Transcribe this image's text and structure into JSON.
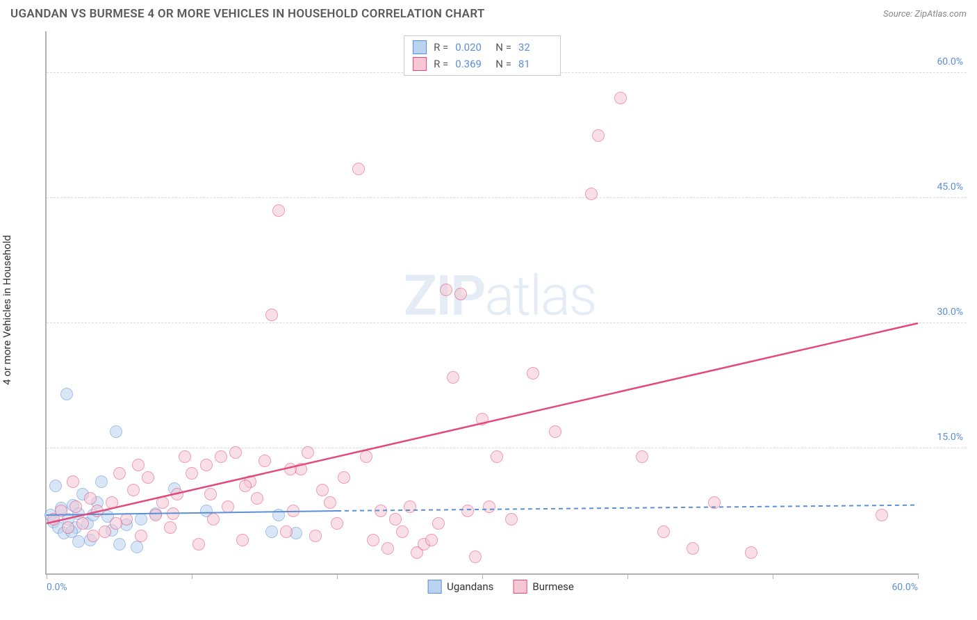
{
  "title": "UGANDAN VS BURMESE 4 OR MORE VEHICLES IN HOUSEHOLD CORRELATION CHART",
  "source": "Source: ZipAtlas.com",
  "y_axis_label": "4 or more Vehicles in Household",
  "watermark": {
    "bold": "ZIP",
    "light": "atlas"
  },
  "chart": {
    "type": "scatter",
    "xlim": [
      0,
      60
    ],
    "ylim": [
      0,
      65
    ],
    "x_ticks": [
      0,
      10,
      20,
      30,
      40,
      50,
      60
    ],
    "x_tick_labels": {
      "0": "0.0%",
      "60": "60.0%"
    },
    "y_gridlines": [
      15,
      30,
      45,
      60
    ],
    "y_tick_labels": {
      "15": "15.0%",
      "30": "30.0%",
      "45": "45.0%",
      "60": "60.0%"
    },
    "background_color": "#ffffff",
    "grid_color": "#d8d8d8",
    "axis_color": "#b0b0b0",
    "point_radius": 9,
    "point_opacity": 0.55
  },
  "series": [
    {
      "name": "Ugandans",
      "color_fill": "#b9d3f0",
      "color_stroke": "#5b8fd6",
      "R": "0.020",
      "N": "32",
      "trend": {
        "x1": 0,
        "y1": 7.0,
        "x2_solid": 20,
        "y2_solid": 7.5,
        "x2": 60,
        "y2": 8.2,
        "stroke_width": 2
      },
      "points": [
        [
          0.3,
          7
        ],
        [
          0.5,
          6.2
        ],
        [
          0.8,
          5.5
        ],
        [
          1.0,
          7.8
        ],
        [
          1.2,
          4.8
        ],
        [
          1.4,
          21.5
        ],
        [
          1.5,
          6.5
        ],
        [
          1.8,
          8.2
        ],
        [
          2.0,
          5.5
        ],
        [
          2.2,
          7.2
        ],
        [
          2.5,
          9.5
        ],
        [
          2.8,
          6.0
        ],
        [
          3.0,
          4.0
        ],
        [
          3.2,
          7.0
        ],
        [
          3.8,
          11.0
        ],
        [
          4.2,
          6.8
        ],
        [
          4.8,
          17.0
        ],
        [
          5.0,
          3.5
        ],
        [
          5.5,
          5.8
        ],
        [
          6.2,
          3.2
        ],
        [
          6.5,
          6.5
        ],
        [
          2.2,
          3.8
        ],
        [
          0.6,
          10.5
        ],
        [
          1.7,
          5.0
        ],
        [
          3.5,
          8.5
        ],
        [
          4.5,
          5.2
        ],
        [
          7.5,
          7.2
        ],
        [
          8.8,
          10.2
        ],
        [
          11.0,
          7.5
        ],
        [
          15.5,
          5.0
        ],
        [
          16.0,
          7.0
        ],
        [
          17.2,
          4.8
        ]
      ]
    },
    {
      "name": "Burmese",
      "color_fill": "#f5c8d4",
      "color_stroke": "#e24a7b",
      "R": "0.369",
      "N": "81",
      "trend": {
        "x1": 0,
        "y1": 6.0,
        "x2_solid": 60,
        "y2_solid": 30.0,
        "x2": 60,
        "y2": 30.0,
        "stroke_width": 2.5
      },
      "points": [
        [
          0.5,
          6.5
        ],
        [
          1.0,
          7.5
        ],
        [
          1.5,
          5.5
        ],
        [
          2.0,
          8.0
        ],
        [
          2.5,
          6.0
        ],
        [
          3.0,
          9.0
        ],
        [
          3.5,
          7.5
        ],
        [
          4.0,
          5.0
        ],
        [
          4.5,
          8.5
        ],
        [
          5.0,
          12.0
        ],
        [
          5.5,
          6.5
        ],
        [
          6.0,
          10.0
        ],
        [
          6.5,
          4.5
        ],
        [
          7.0,
          11.5
        ],
        [
          7.5,
          7.0
        ],
        [
          8.0,
          8.5
        ],
        [
          8.5,
          5.5
        ],
        [
          9.0,
          9.5
        ],
        [
          9.5,
          14.0
        ],
        [
          10.0,
          12.0
        ],
        [
          10.5,
          3.5
        ],
        [
          11.0,
          13.0
        ],
        [
          11.5,
          6.5
        ],
        [
          12.0,
          14.0
        ],
        [
          12.5,
          8.0
        ],
        [
          13.0,
          14.5
        ],
        [
          13.5,
          4.0
        ],
        [
          14.0,
          11.0
        ],
        [
          14.5,
          9.0
        ],
        [
          15.0,
          13.5
        ],
        [
          15.5,
          31.0
        ],
        [
          16.0,
          43.5
        ],
        [
          16.5,
          5.0
        ],
        [
          17.0,
          7.5
        ],
        [
          17.5,
          12.5
        ],
        [
          18.0,
          14.5
        ],
        [
          18.5,
          4.5
        ],
        [
          19.0,
          10.0
        ],
        [
          19.5,
          8.5
        ],
        [
          20.0,
          6.0
        ],
        [
          20.5,
          11.5
        ],
        [
          21.5,
          48.5
        ],
        [
          22.0,
          14.0
        ],
        [
          22.5,
          4.0
        ],
        [
          23.0,
          7.5
        ],
        [
          23.5,
          3.0
        ],
        [
          24.0,
          6.5
        ],
        [
          24.5,
          5.0
        ],
        [
          25.0,
          8.0
        ],
        [
          25.5,
          2.5
        ],
        [
          26.0,
          3.5
        ],
        [
          26.5,
          4.0
        ],
        [
          27.0,
          6.0
        ],
        [
          27.5,
          34.0
        ],
        [
          28.0,
          23.5
        ],
        [
          28.5,
          33.5
        ],
        [
          29.0,
          7.5
        ],
        [
          29.5,
          2.0
        ],
        [
          30.0,
          18.5
        ],
        [
          30.5,
          8.0
        ],
        [
          31.0,
          14.0
        ],
        [
          32.0,
          6.5
        ],
        [
          33.5,
          24.0
        ],
        [
          35.0,
          17.0
        ],
        [
          37.5,
          45.5
        ],
        [
          38.0,
          52.5
        ],
        [
          39.5,
          57.0
        ],
        [
          41.0,
          14.0
        ],
        [
          42.5,
          5.0
        ],
        [
          44.5,
          3.0
        ],
        [
          46.0,
          8.5
        ],
        [
          48.5,
          2.5
        ],
        [
          57.5,
          7.0
        ],
        [
          1.8,
          11.0
        ],
        [
          3.2,
          4.5
        ],
        [
          4.8,
          6.0
        ],
        [
          6.3,
          13.0
        ],
        [
          8.7,
          7.2
        ],
        [
          11.3,
          9.5
        ],
        [
          13.7,
          10.5
        ],
        [
          16.8,
          12.5
        ]
      ]
    }
  ],
  "legend_top_labels": {
    "R": "R =",
    "N": "N ="
  },
  "legend_bottom": [
    {
      "name": "Ugandans",
      "fill": "#b9d3f0",
      "stroke": "#5b8fd6"
    },
    {
      "name": "Burmese",
      "fill": "#f5c8d4",
      "stroke": "#e24a7b"
    }
  ]
}
